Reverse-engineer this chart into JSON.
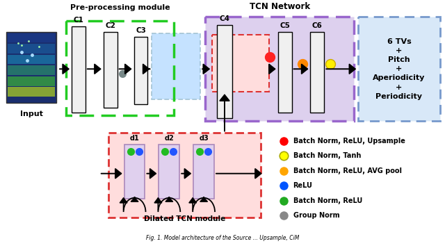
{
  "legend_items": [
    {
      "color": "#FF0000",
      "label": "Batch Norm, ReLU, Upsample"
    },
    {
      "color": "#FFFF00",
      "label": "Batch Norm, Tanh"
    },
    {
      "color": "#FFA500",
      "label": "Batch Norm, ReLU, AVG pool"
    },
    {
      "color": "#0055FF",
      "label": "ReLU"
    },
    {
      "color": "#22AA22",
      "label": "Batch Norm, ReLU"
    },
    {
      "color": "#888888",
      "label": "Group Norm"
    }
  ],
  "preproc_label": "Pre-processing module",
  "tcn_label": "TCN Network",
  "dilated_label": "Dilated TCN module",
  "input_label": "Input",
  "output_text": "6 TVs\n+\nPitch\n+\nAperiodicity\n+\nPeriodicity",
  "conv_labels_top": [
    "C1",
    "C2",
    "C3",
    "C4",
    "C5",
    "C6"
  ],
  "dil_labels": [
    "d1",
    "d2",
    "d3"
  ],
  "caption": "Fig. 1. Model architecture of the Source ... Upsample, CiM"
}
